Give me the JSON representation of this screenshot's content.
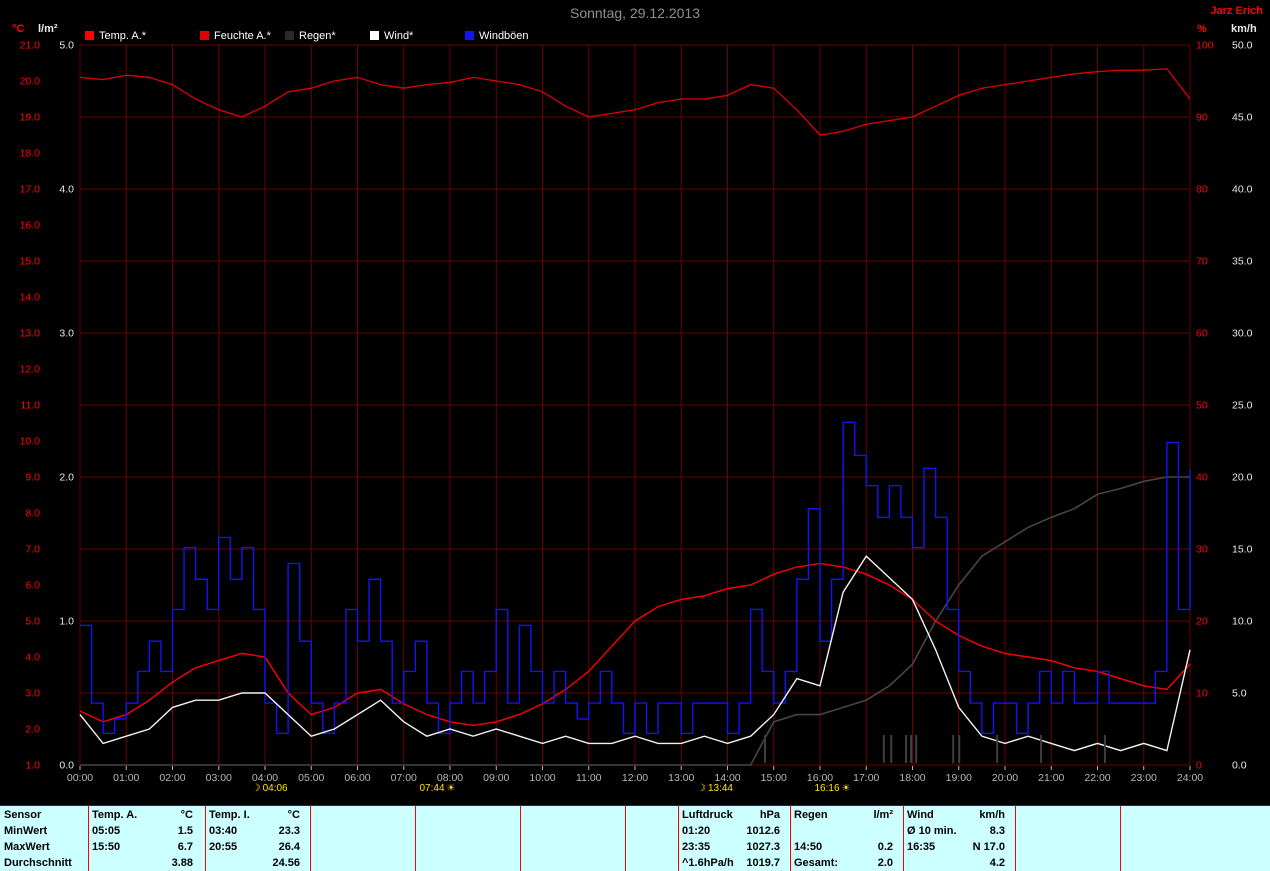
{
  "header": {
    "title": "Sonntag, 29.12.2013",
    "station": "Jarz Erich"
  },
  "axis_headers": {
    "temp": "°C",
    "rain": "l/m²",
    "hum": "%",
    "wind": "km/h"
  },
  "legend": [
    {
      "label": "Temp. A.*",
      "color": "#ff0000"
    },
    {
      "label": "Feuchte A.*",
      "color": "#e00000"
    },
    {
      "label": "Regen*",
      "color": "#2a2a2a"
    },
    {
      "label": "Wind*",
      "color": "#ffffff"
    },
    {
      "label": "Windböen",
      "color": "#1414f2"
    }
  ],
  "colors": {
    "grid": "#6e0000",
    "axis_red": "#ff0000",
    "axis_white": "#e8e8e8",
    "x_labels": "#b8b8b8",
    "rain_bar": "#3f3f3f"
  },
  "chart_data": {
    "type": "line",
    "x_unit": "hour",
    "x_range": [
      0,
      24
    ],
    "grid": true,
    "background": "#000000",
    "x_ticks": [
      "00:00",
      "01:00",
      "02:00",
      "03:00",
      "04:00",
      "05:00",
      "06:00",
      "07:00",
      "08:00",
      "09:00",
      "10:00",
      "11:00",
      "12:00",
      "13:00",
      "14:00",
      "15:00",
      "16:00",
      "17:00",
      "18:00",
      "19:00",
      "20:00",
      "21:00",
      "22:00",
      "23:00",
      "24:00"
    ],
    "axes": {
      "temp": {
        "title": "°C",
        "min": 1,
        "max": 21,
        "ticks": [
          "21.0",
          "20.0",
          "19.0",
          "18.0",
          "17.0",
          "16.0",
          "15.0",
          "14.0",
          "13.0",
          "12.0",
          "11.0",
          "10.0",
          "9.0",
          "8.0",
          "7.0",
          "6.0",
          "5.0",
          "4.0",
          "3.0",
          "2.0",
          "1.0"
        ]
      },
      "rain": {
        "title": "l/m²",
        "min": 0,
        "max": 5,
        "ticks": [
          "5.0",
          "4.0",
          "3.0",
          "2.0",
          "1.0",
          "0.0"
        ]
      },
      "hum": {
        "title": "%",
        "min": 0,
        "max": 100,
        "ticks": [
          "100",
          "90",
          "80",
          "70",
          "60",
          "50",
          "40",
          "30",
          "20",
          "10",
          "0"
        ]
      },
      "wind": {
        "title": "km/h",
        "min": 0,
        "max": 50,
        "ticks": [
          "50.0",
          "45.0",
          "40.0",
          "35.0",
          "30.0",
          "25.0",
          "20.0",
          "15.0",
          "10.0",
          "5.0",
          "0.0"
        ]
      }
    },
    "series": [
      {
        "key": "feuchte",
        "name": "Feuchte A.",
        "axis": "hum",
        "color": "#e00000",
        "width": 1.3,
        "step_h": 0.5,
        "values": [
          95.5,
          95.2,
          95.8,
          95.5,
          94.5,
          92.5,
          91.0,
          90.0,
          91.5,
          93.5,
          94.0,
          95.0,
          95.5,
          94.5,
          94.0,
          94.5,
          94.8,
          95.5,
          95.0,
          94.5,
          93.5,
          91.5,
          90.0,
          90.5,
          91.0,
          92.0,
          92.5,
          92.5,
          93.0,
          94.5,
          94.0,
          91.0,
          87.5,
          88.0,
          89.0,
          89.5,
          90.0,
          91.5,
          93.0,
          94.0,
          94.5,
          95.0,
          95.5,
          96.0,
          96.3,
          96.5,
          96.5,
          96.7,
          92.5
        ]
      },
      {
        "key": "regen",
        "name": "Regen",
        "axis": "rain",
        "color": "#464646",
        "width": 1.6,
        "step_h": 0.5,
        "values": [
          0,
          0,
          0,
          0,
          0,
          0,
          0,
          0,
          0,
          0,
          0,
          0,
          0,
          0,
          0,
          0,
          0,
          0,
          0,
          0,
          0,
          0,
          0,
          0,
          0,
          0,
          0,
          0,
          0,
          0,
          0.3,
          0.35,
          0.35,
          0.4,
          0.45,
          0.55,
          0.7,
          1.0,
          1.25,
          1.45,
          1.55,
          1.65,
          1.72,
          1.78,
          1.88,
          1.92,
          1.97,
          2.0,
          2.0
        ]
      },
      {
        "key": "temp-a",
        "name": "Temp. A.",
        "axis": "temp",
        "color": "#ff0000",
        "width": 1.4,
        "step_h": 0.5,
        "values": [
          2.5,
          2.2,
          2.4,
          2.8,
          3.3,
          3.7,
          3.9,
          4.1,
          4.0,
          3.0,
          2.4,
          2.6,
          3.0,
          3.1,
          2.7,
          2.4,
          2.2,
          2.1,
          2.2,
          2.4,
          2.7,
          3.1,
          3.6,
          4.3,
          5.0,
          5.4,
          5.6,
          5.7,
          5.9,
          6.0,
          6.3,
          6.5,
          6.6,
          6.5,
          6.3,
          6.0,
          5.6,
          5.0,
          4.6,
          4.3,
          4.1,
          4.0,
          3.9,
          3.7,
          3.6,
          3.4,
          3.2,
          3.1,
          3.8
        ]
      },
      {
        "key": "windboeen",
        "name": "Windböen",
        "axis": "wind",
        "color": "#1414f2",
        "width": 1.4,
        "step_h": 0.25,
        "render": "step",
        "values": [
          9.7,
          4.3,
          2.2,
          3.2,
          4.3,
          6.5,
          8.6,
          6.5,
          10.8,
          15.1,
          12.9,
          10.8,
          15.8,
          12.9,
          15.1,
          10.8,
          4.3,
          2.2,
          14.0,
          8.6,
          4.3,
          2.2,
          4.3,
          10.8,
          8.6,
          12.9,
          8.6,
          4.3,
          6.5,
          8.6,
          4.3,
          2.2,
          4.3,
          6.5,
          4.3,
          6.5,
          10.8,
          4.3,
          9.7,
          6.5,
          4.3,
          6.5,
          4.3,
          3.2,
          4.3,
          6.5,
          4.3,
          2.2,
          4.3,
          2.2,
          4.3,
          4.3,
          2.2,
          4.3,
          4.3,
          4.3,
          2.2,
          4.3,
          10.8,
          6.5,
          4.3,
          6.5,
          12.9,
          17.8,
          8.6,
          12.9,
          23.8,
          21.5,
          19.4,
          17.2,
          19.4,
          17.2,
          15.1,
          20.6,
          17.2,
          10.8,
          6.5,
          4.3,
          2.2,
          4.3,
          4.3,
          2.2,
          4.3,
          6.5,
          4.3,
          6.5,
          4.3,
          4.3,
          6.5,
          4.3,
          4.3,
          4.3,
          4.3,
          6.5,
          22.4,
          10.8,
          20.5
        ]
      },
      {
        "key": "wind",
        "name": "Wind",
        "axis": "wind",
        "color": "#f2f2f2",
        "width": 1.4,
        "step_h": 0.5,
        "values": [
          3.5,
          1.5,
          2.0,
          2.5,
          4.0,
          4.5,
          4.5,
          5.0,
          5.0,
          3.5,
          2.0,
          2.5,
          3.5,
          4.5,
          3.0,
          2.0,
          2.5,
          2.0,
          2.5,
          2.0,
          1.5,
          2.0,
          1.5,
          1.5,
          2.0,
          1.5,
          1.5,
          2.0,
          1.5,
          2.0,
          3.5,
          6.0,
          5.5,
          12.0,
          14.5,
          13.0,
          11.5,
          8.0,
          4.0,
          2.0,
          1.5,
          2.0,
          1.5,
          1.0,
          1.5,
          1.0,
          1.5,
          1.0,
          8.0
        ]
      }
    ],
    "rain_events_h": [
      14.81,
      17.38,
      17.54,
      17.86,
      17.97,
      18.08,
      18.88,
      19.01,
      19.83,
      20.78,
      22.16
    ],
    "sun_markers": [
      {
        "time": "04:06",
        "hour": 4.1,
        "icon": "moon"
      },
      {
        "time": "07:44",
        "hour": 7.73,
        "icon": "sun"
      },
      {
        "time": "13:44",
        "hour": 13.73,
        "icon": "moon"
      },
      {
        "time": "16:16",
        "hour": 16.27,
        "icon": "sun"
      }
    ]
  },
  "table": {
    "row_labels": [
      "Sensor",
      "MinWert",
      "MaxWert",
      "Durchschnitt"
    ],
    "columns": [
      {
        "name": "Temp. A.",
        "unit": "°C",
        "rows": [
          [
            "05:05",
            "1.5"
          ],
          [
            "15:50",
            "6.7"
          ],
          [
            "",
            "3.88"
          ]
        ]
      },
      {
        "name": "Temp. I.",
        "unit": "°C",
        "rows": [
          [
            "03:40",
            "23.3"
          ],
          [
            "20:55",
            "26.4"
          ],
          [
            "",
            "24.56"
          ]
        ]
      },
      {
        "name": "Luftdruck",
        "unit": "hPa",
        "rows": [
          [
            "01:20",
            "1012.6"
          ],
          [
            "23:35",
            "1027.3"
          ],
          [
            "^1.6hPa/h",
            "1019.7"
          ]
        ]
      },
      {
        "name": "Regen",
        "unit": "l/m²",
        "rows": [
          [
            "",
            ""
          ],
          [
            "14:50",
            "0.2"
          ],
          [
            "Gesamt:",
            "2.0"
          ]
        ]
      },
      {
        "name": "Wind",
        "unit": "km/h",
        "rows": [
          [
            "Ø 10 min.",
            "8.3"
          ],
          [
            "16:35",
            "N 17.0"
          ],
          [
            "",
            "4.2"
          ]
        ]
      }
    ]
  }
}
